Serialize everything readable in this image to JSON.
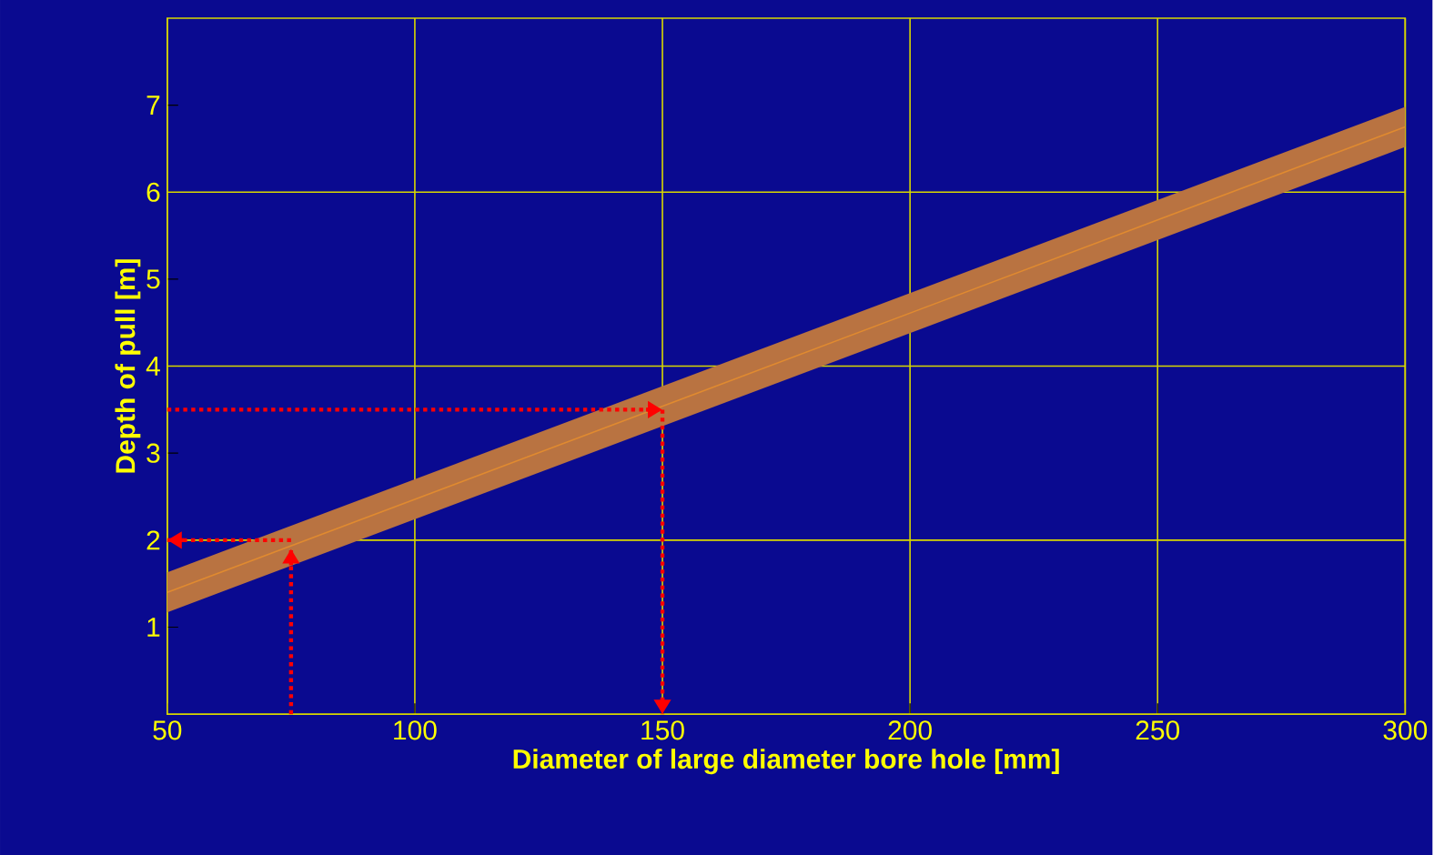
{
  "chart_data": {
    "type": "line",
    "xlabel": "Diameter of large diameter bore hole [mm]",
    "ylabel": "Depth of pull [m]",
    "x": [
      50,
      300
    ],
    "series": [
      {
        "color": "#e08a30",
        "values": [
          1.4,
          6.75
        ],
        "lower": [
          1.17,
          6.52
        ],
        "upper": [
          1.63,
          6.98
        ]
      },
      {
        "type": "line",
        "color": "#ff0000",
        "line_style": "dotted",
        "x": [
          75,
          75
        ],
        "values": [
          0,
          1.9
        ]
      },
      {
        "type": "line",
        "color": "#ff0000",
        "line_style": "dotted",
        "x": [
          75,
          50
        ],
        "values": [
          2,
          2
        ]
      },
      {
        "type": "line",
        "color": "#ff0000",
        "line_style": "dotted",
        "x": [
          50,
          150
        ],
        "values": [
          3.5,
          3.5
        ]
      },
      {
        "type": "line",
        "color": "#ff0000",
        "line_style": "dotted",
        "x": [
          150,
          150
        ],
        "values": [
          3.5,
          0
        ]
      }
    ],
    "xlim": [
      50,
      300
    ],
    "ylim": [
      0,
      8
    ],
    "xticks": [
      50,
      100,
      150,
      200,
      250,
      300
    ],
    "yticks": [
      1,
      2,
      3,
      4,
      5,
      6,
      7
    ],
    "grid": "x",
    "ref_lines": [
      {
        "axis": "y",
        "value": 2,
        "color": "#d8d800"
      },
      {
        "axis": "y",
        "value": 4,
        "color": "#d8d800"
      },
      {
        "axis": "y",
        "value": 6,
        "color": "#d8d800"
      }
    ]
  }
}
